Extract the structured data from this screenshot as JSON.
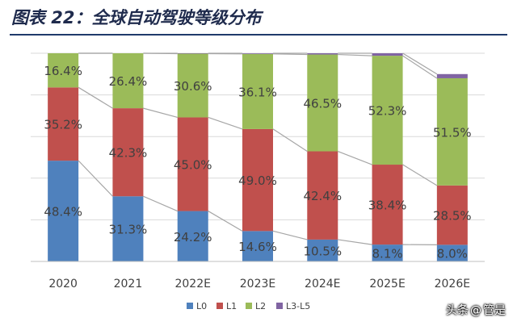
{
  "page": {
    "title": "图表 22：全球自动驾驶等级分布",
    "watermark_app": "头条",
    "watermark_at": "@",
    "watermark_user": "管是"
  },
  "chart_data": {
    "type": "bar",
    "stacked": true,
    "normalized": true,
    "categories": [
      "2020",
      "2021",
      "2022E",
      "2023E",
      "2024E",
      "2025E",
      "2026E"
    ],
    "series": [
      {
        "name": "L0",
        "color": "#4f81bd",
        "values": [
          48.4,
          31.3,
          24.2,
          14.6,
          10.5,
          8.1,
          8.0
        ],
        "labels": [
          "48.4%",
          "31.3%",
          "24.2%",
          "14.6%",
          "10.5%",
          "8.1%",
          "8.0%"
        ]
      },
      {
        "name": "L1",
        "color": "#c0504d",
        "values": [
          35.2,
          42.3,
          45.0,
          49.0,
          42.4,
          38.4,
          28.5
        ],
        "labels": [
          "35.2%",
          "42.3%",
          "45.0%",
          "49.0%",
          "42.4%",
          "38.4%",
          "28.5%"
        ]
      },
      {
        "name": "L2",
        "color": "#9bbb59",
        "values": [
          16.4,
          26.4,
          30.6,
          36.1,
          46.5,
          52.3,
          51.5
        ],
        "labels": [
          "16.4%",
          "26.4%",
          "30.6%",
          "36.1%",
          "46.5%",
          "52.3%",
          "51.5%"
        ]
      },
      {
        "name": "L3-L5",
        "color": "#8064a2",
        "values": [
          0.0,
          0.0,
          0.2,
          0.3,
          0.6,
          1.2,
          2.0
        ],
        "labels": []
      }
    ],
    "ylim": [
      0,
      100
    ],
    "grid": true,
    "series_lines": true,
    "legend_position": "bottom"
  }
}
